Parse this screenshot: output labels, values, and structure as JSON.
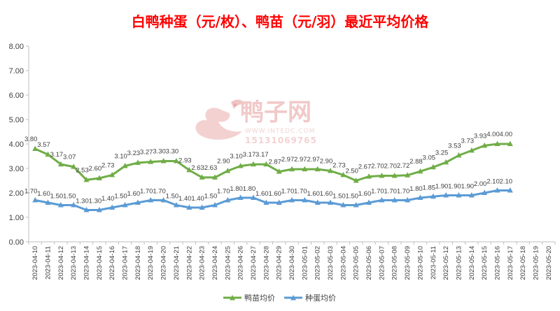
{
  "chart_data": {
    "type": "line",
    "title": "白鸭种蛋（元/枚）、鸭苗（元/羽）最近平均价格",
    "xlabel": "",
    "ylabel": "",
    "ylim": [
      0,
      8
    ],
    "yticks": [
      "0.00",
      "1.00",
      "2.00",
      "3.00",
      "4.00",
      "5.00",
      "6.00",
      "7.00",
      "8.00"
    ],
    "grid": false,
    "legend": "bottom-center",
    "categories": [
      "2023-04-10",
      "2023-04-11",
      "2023-04-12",
      "2023-04-13",
      "2023-04-14",
      "2023-04-15",
      "2023-04-16",
      "2023-04-17",
      "2023-04-18",
      "2023-04-19",
      "2023-04-20",
      "2023-04-21",
      "2023-04-22",
      "2023-04-23",
      "2023-04-24",
      "2023-04-25",
      "2023-04-26",
      "2023-04-27",
      "2023-04-28",
      "2023-04-29",
      "2023-04-30",
      "2023-05-01",
      "2023-05-02",
      "2023-05-03",
      "2023-05-04",
      "2023-05-05",
      "2023-05-06",
      "2023-05-07",
      "2023-05-08",
      "2023-05-09",
      "2023-05-10",
      "2023-05-11",
      "2023-05-12",
      "2023-05-13",
      "2023-05-14",
      "2023-05-15",
      "2023-05-16",
      "2023-05-17",
      "2023-05-18",
      "2023-05-19",
      "2023-05-20"
    ],
    "series": [
      {
        "name": "鸭苗均价",
        "color": "#70ad47",
        "marker": "triangle",
        "values": [
          3.8,
          3.57,
          3.17,
          3.07,
          2.53,
          2.6,
          2.73,
          3.1,
          3.23,
          3.27,
          3.3,
          3.3,
          2.93,
          2.63,
          2.63,
          2.9,
          3.1,
          3.17,
          3.17,
          2.87,
          2.97,
          2.97,
          2.97,
          2.9,
          2.73,
          2.5,
          2.67,
          2.7,
          2.7,
          2.72,
          2.88,
          3.05,
          3.25,
          3.53,
          3.73,
          3.93,
          4.0,
          4.0,
          null,
          null,
          null
        ],
        "labels": [
          "3.80",
          "3.57",
          "3.17",
          "3.07",
          "2.53",
          "2.60",
          "2.73",
          "3.10",
          "3.23",
          "3.27",
          "3.30",
          "3.30",
          "2.93",
          "2.63",
          "2.63",
          "2.90",
          "3.10",
          "3.17",
          "3.17",
          "2.87",
          "2.97",
          "2.97",
          "2.97",
          "2.90",
          "2.73",
          "2.50",
          "2.67",
          "2.70",
          "2.70",
          "2.72",
          "2.88",
          "3.05",
          "3.25",
          "3.53",
          "3.73",
          "3.93",
          "4.00",
          "4.00",
          null,
          null,
          null
        ]
      },
      {
        "name": "种蛋均价",
        "color": "#5b9bd5",
        "marker": "triangle",
        "values": [
          1.7,
          1.6,
          1.5,
          1.5,
          1.3,
          1.3,
          1.4,
          1.5,
          1.6,
          1.7,
          1.7,
          1.5,
          1.4,
          1.4,
          1.5,
          1.7,
          1.8,
          1.8,
          1.6,
          1.6,
          1.7,
          1.7,
          1.6,
          1.6,
          1.5,
          1.5,
          1.6,
          1.7,
          1.7,
          1.7,
          1.8,
          1.85,
          1.9,
          1.9,
          1.9,
          2.0,
          2.1,
          2.1,
          null,
          null,
          null
        ],
        "labels": [
          "1.70",
          "1.60",
          "1.50",
          "1.50",
          "1.30",
          "1.30",
          "1.40",
          "1.50",
          "1.60",
          "1.70",
          "1.70",
          "1.50",
          "1.40",
          "1.40",
          "1.50",
          "1.70",
          "1.80",
          "1.80",
          "1.60",
          "1.60",
          "1.70",
          "1.70",
          "1.60",
          "1.60",
          "1.50",
          "1.50",
          "1.60",
          "1.70",
          "1.70",
          "1.70",
          "1.80",
          "1.85",
          "1.90",
          "1.90",
          "1.90",
          "2.00",
          "2.10",
          "2.10",
          null,
          null,
          null
        ]
      }
    ]
  },
  "watermark": {
    "brand": "鸭子网",
    "url": "WWW.INTEDC.COM",
    "phone": "15131069765"
  }
}
